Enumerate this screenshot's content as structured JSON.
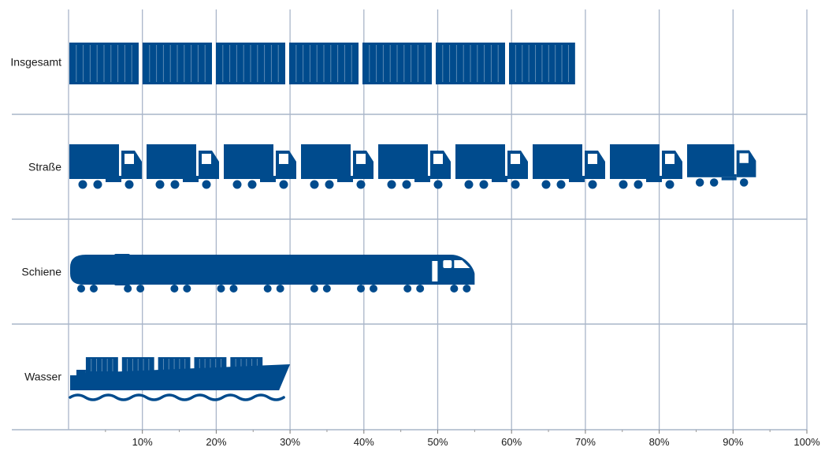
{
  "chart_data": {
    "type": "bar",
    "style": "pictogram",
    "categories": [
      "Insgesamt",
      "Straße",
      "Schiene",
      "Wasser"
    ],
    "values": [
      68.5,
      93,
      55,
      30
    ],
    "x_ticks": [
      "10%",
      "20%",
      "30%",
      "40%",
      "50%",
      "60%",
      "70%",
      "80%",
      "90%",
      "100%"
    ],
    "xlim": [
      0,
      100
    ],
    "grid": true,
    "icons": [
      "container-icon",
      "truck-icon",
      "train-icon",
      "ship-icon"
    ],
    "colors": {
      "bar": "#004b8d",
      "grid": "#a9b5c9"
    }
  }
}
